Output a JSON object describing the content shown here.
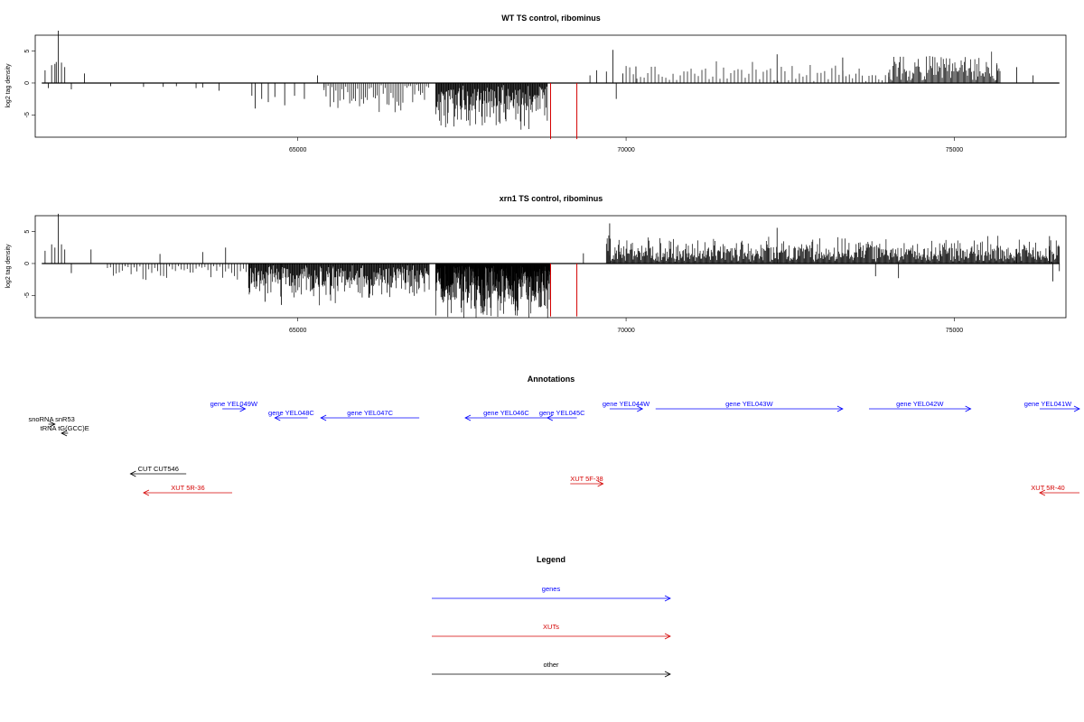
{
  "chart_data": [
    {
      "type": "bar",
      "title": "WT TS control, ribominus",
      "ylabel": "log2 tag density",
      "xlabel": "",
      "xlim": [
        61000,
        76700
      ],
      "ylim": [
        -8.5,
        7.5
      ],
      "x_ticks": [
        65000,
        70000,
        75000
      ],
      "y_ticks": [
        -5,
        0,
        5
      ],
      "grid": false,
      "spikes": [
        {
          "x": 61150,
          "y": 2.0
        },
        {
          "x": 61200,
          "y": -0.8
        },
        {
          "x": 61250,
          "y": 2.8
        },
        {
          "x": 61300,
          "y": 3.0
        },
        {
          "x": 61320,
          "y": 3.3
        },
        {
          "x": 61350,
          "y": 8.2
        },
        {
          "x": 61400,
          "y": 3.2
        },
        {
          "x": 61450,
          "y": 2.5
        },
        {
          "x": 61750,
          "y": 1.5
        },
        {
          "x": 61550,
          "y": -1.0
        },
        {
          "x": 62150,
          "y": -0.5
        },
        {
          "x": 62650,
          "y": -0.6
        },
        {
          "x": 62950,
          "y": -0.6
        },
        {
          "x": 63150,
          "y": -0.5
        },
        {
          "x": 63450,
          "y": -0.8
        },
        {
          "x": 63550,
          "y": -0.7
        },
        {
          "x": 63800,
          "y": -1.2
        },
        {
          "x": 64300,
          "y": -2.0
        },
        {
          "x": 64350,
          "y": -4.0
        },
        {
          "x": 64450,
          "y": -2.5
        },
        {
          "x": 64550,
          "y": -3.0
        },
        {
          "x": 64650,
          "y": -2.2
        },
        {
          "x": 64800,
          "y": -3.5
        },
        {
          "x": 64950,
          "y": -2.0
        },
        {
          "x": 65100,
          "y": -2.5
        },
        {
          "x": 65300,
          "y": 1.2
        },
        {
          "x": 65400,
          "y": -0.7
        },
        {
          "x": 68850,
          "y": -8.8
        },
        {
          "x": 69250,
          "y": -8.8
        },
        {
          "x": 69450,
          "y": 1.2
        },
        {
          "x": 69550,
          "y": 2.0
        },
        {
          "x": 69700,
          "y": 1.8
        },
        {
          "x": 69800,
          "y": 5.2
        },
        {
          "x": 69850,
          "y": -2.5
        },
        {
          "x": 69950,
          "y": 1.5
        },
        {
          "x": 70150,
          "y": 2.6
        },
        {
          "x": 72300,
          "y": 4.5
        },
        {
          "x": 73300,
          "y": 4.0
        },
        {
          "x": 75650,
          "y": 2.8
        },
        {
          "x": 75950,
          "y": 2.5
        },
        {
          "x": 76200,
          "y": 1.2
        }
      ],
      "dense_regions": [
        {
          "from": 65400,
          "to": 67000,
          "sign": -1,
          "amp": 3.5,
          "step": 30
        },
        {
          "from": 67100,
          "to": 68800,
          "sign": -1,
          "amp": 5.5,
          "step": 10
        },
        {
          "from": 70000,
          "to": 73300,
          "sign": 1,
          "amp": 2.5,
          "step": 55
        },
        {
          "from": 73300,
          "to": 74000,
          "sign": 1,
          "amp": 2.2,
          "step": 50
        },
        {
          "from": 74000,
          "to": 75700,
          "sign": 1,
          "amp": 3.5,
          "step": 16
        }
      ],
      "red_lines": [
        68850,
        69250
      ],
      "colors": {
        "data": "#000000",
        "highlight": "#d40000"
      }
    },
    {
      "type": "bar",
      "title": "xrn1 TS control, ribominus",
      "ylabel": "log2 tag density",
      "xlabel": "",
      "xlim": [
        61000,
        76700
      ],
      "ylim": [
        -8.5,
        7.5
      ],
      "x_ticks": [
        65000,
        70000,
        75000
      ],
      "y_ticks": [
        -5,
        0,
        5
      ],
      "grid": false,
      "spikes": [
        {
          "x": 61150,
          "y": 2.0
        },
        {
          "x": 61250,
          "y": 3.0
        },
        {
          "x": 61300,
          "y": 2.5
        },
        {
          "x": 61350,
          "y": 7.8
        },
        {
          "x": 61400,
          "y": 3.0
        },
        {
          "x": 61450,
          "y": 2.2
        },
        {
          "x": 61550,
          "y": -1.5
        },
        {
          "x": 61850,
          "y": 2.2
        },
        {
          "x": 62900,
          "y": 1.5
        },
        {
          "x": 63550,
          "y": 1.8
        },
        {
          "x": 63900,
          "y": 2.5
        },
        {
          "x": 64300,
          "y": -3.0
        },
        {
          "x": 64500,
          "y": -6.0
        },
        {
          "x": 64750,
          "y": -6.5
        },
        {
          "x": 68850,
          "y": -8.3
        },
        {
          "x": 69250,
          "y": -8.3
        },
        {
          "x": 69350,
          "y": 1.6
        },
        {
          "x": 69750,
          "y": 6.3
        },
        {
          "x": 72300,
          "y": 5.6
        },
        {
          "x": 73800,
          "y": -2.0
        },
        {
          "x": 74150,
          "y": -2.3
        },
        {
          "x": 75950,
          "y": 2.3
        },
        {
          "x": 76450,
          "y": 4.3
        },
        {
          "x": 76500,
          "y": -2.8
        },
        {
          "x": 76600,
          "y": -1.2
        }
      ],
      "dense_regions": [
        {
          "from": 62100,
          "to": 64300,
          "sign": -1,
          "amp": 1.8,
          "step": 45
        },
        {
          "from": 64250,
          "to": 67000,
          "sign": -1,
          "amp": 4.5,
          "step": 10
        },
        {
          "from": 67100,
          "to": 68850,
          "sign": -1,
          "amp": 6.2,
          "step": 5
        },
        {
          "from": 69700,
          "to": 76600,
          "sign": 1,
          "amp": 3.0,
          "step": 12
        }
      ],
      "red_lines": [
        68850,
        69250
      ],
      "colors": {
        "data": "#000000",
        "highlight": "#d40000"
      }
    }
  ],
  "annotations": {
    "title": "Annotations",
    "xlim": [
      61000,
      76700
    ],
    "items": [
      {
        "label": "gene YEL049W",
        "start": 63850,
        "end": 64200,
        "row": 0,
        "color": "#0000ff"
      },
      {
        "label": "gene YEL048C",
        "start": 65150,
        "end": 64650,
        "row": 1,
        "color": "#0000ff"
      },
      {
        "label": "gene YEL047C",
        "start": 66850,
        "end": 65350,
        "row": 1,
        "color": "#0000ff"
      },
      {
        "label": "gene YEL046C",
        "start": 68800,
        "end": 67550,
        "row": 1,
        "color": "#0000ff"
      },
      {
        "label": "gene YEL045C",
        "start": 69250,
        "end": 68800,
        "row": 1,
        "color": "#0000ff"
      },
      {
        "label": "gene YEL044W",
        "start": 69750,
        "end": 70250,
        "row": 0,
        "color": "#0000ff"
      },
      {
        "label": "gene YEL043W",
        "start": 70450,
        "end": 73300,
        "row": 0,
        "color": "#0000ff"
      },
      {
        "label": "gene YEL042W",
        "start": 73700,
        "end": 75250,
        "row": 0,
        "color": "#0000ff"
      },
      {
        "label": "gene YEL041W",
        "start": 76300,
        "end": 77000,
        "row": 0,
        "color": "#0000ff"
      },
      {
        "label": "snoRNA snR53",
        "start": 61200,
        "end": 61300,
        "row": 2,
        "color": "#000000"
      },
      {
        "label": "tRNA tG(GCC)E",
        "start": 61500,
        "end": 61400,
        "row": 3,
        "color": "#000000"
      },
      {
        "label": "CUT CUT546",
        "start": 63300,
        "end": 62450,
        "row": 5,
        "color": "#000000"
      },
      {
        "label": "XUT 5F-38",
        "start": 69150,
        "end": 69650,
        "row": 6,
        "color": "#d40000"
      },
      {
        "label": "XUT 5R-36",
        "start": 64000,
        "end": 62650,
        "row": 7,
        "color": "#d40000"
      },
      {
        "label": "XUT 5R-40",
        "start": 77000,
        "end": 76300,
        "row": 7,
        "color": "#d40000"
      }
    ]
  },
  "legend": {
    "title": "Legend",
    "items": [
      {
        "label": "genes",
        "color": "#0000ff"
      },
      {
        "label": "XUTs",
        "color": "#d40000"
      },
      {
        "label": "other",
        "color": "#000000"
      }
    ]
  }
}
